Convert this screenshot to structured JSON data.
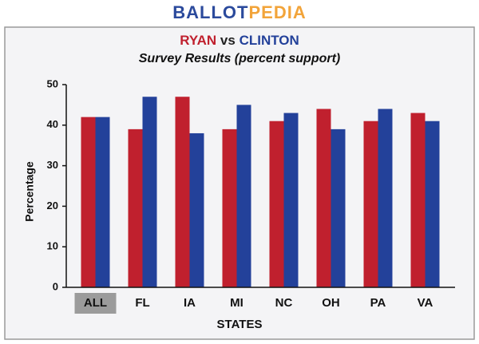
{
  "chart_data": {
    "type": "bar",
    "brand": [
      "BALLOT",
      "PEDIA"
    ],
    "brand_colors": [
      "#2b4a9c",
      "#f2a43a"
    ],
    "title_connector": "vs",
    "subtitle": "Survey Results (percent support)",
    "x_label": "STATES",
    "y_label": "Percentage",
    "categories": [
      "ALL",
      "FL",
      "IA",
      "MI",
      "NC",
      "OH",
      "PA",
      "VA"
    ],
    "highlighted_categories": [
      0
    ],
    "series": [
      {
        "name": "RYAN",
        "color": "#c0202e",
        "values": [
          42,
          39,
          47,
          39,
          41,
          44,
          41,
          43
        ]
      },
      {
        "name": "CLINTON",
        "color": "#23419a",
        "values": [
          42,
          47,
          38,
          45,
          43,
          39,
          44,
          41
        ]
      }
    ],
    "ylim": [
      0,
      50
    ],
    "yticks": [
      0,
      10,
      20,
      30,
      40,
      50
    ],
    "grid": false
  }
}
